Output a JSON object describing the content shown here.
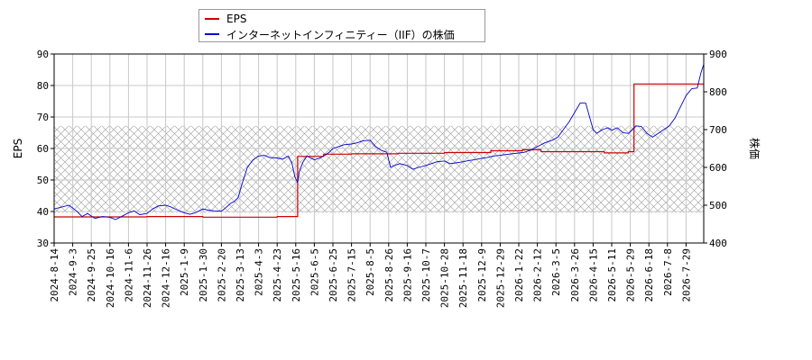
{
  "chart_data": {
    "type": "line",
    "title": "",
    "legend": {
      "placement": "top-left",
      "entries": [
        {
          "name": "EPS",
          "color": "#cc0000"
        },
        {
          "name": "インターネットインフィニティー（IIF）の株価",
          "color": "#0000cc"
        }
      ]
    },
    "x_axis": {
      "tick_labels": [
        "2024-8-14",
        "2024-9-3",
        "2024-9-25",
        "2024-10-16",
        "2024-11-6",
        "2024-11-26",
        "2024-12-16",
        "2025-1-9",
        "2025-1-30",
        "2025-2-20",
        "2025-3-13",
        "2025-4-3",
        "2025-4-23",
        "2025-5-16",
        "2025-6-5",
        "2025-6-25",
        "2025-7-15",
        "2025-8-5",
        "2025-8-26",
        "2025-9-16",
        "2025-10-7",
        "2025-10-28",
        "2025-11-18",
        "2025-12-9",
        "2025-12-29",
        "2026-1-22",
        "2026-2-12",
        "2026-3-5",
        "2026-3-26",
        "2026-4-15",
        "2026-5-11",
        "2026-5-29",
        "2026-6-18",
        "2026-7-8",
        "2026-7-29"
      ]
    },
    "y_left": {
      "label": "EPS",
      "range": [
        30,
        90
      ],
      "ticks": [
        30,
        40,
        50,
        60,
        70,
        80,
        90
      ]
    },
    "y_right": {
      "label": "株価",
      "range": [
        400,
        900
      ],
      "ticks": [
        400,
        500,
        600,
        700,
        800,
        900
      ]
    },
    "grid": true,
    "hatched_band": {
      "axis": "right",
      "from": 480,
      "to": 710
    },
    "series": [
      {
        "name": "EPS",
        "axis": "left",
        "color": "#cc0000",
        "step": true,
        "points": [
          [
            0,
            38.3
          ],
          [
            5,
            38.3
          ],
          [
            5,
            38.4
          ],
          [
            8,
            38.4
          ],
          [
            8,
            38.2
          ],
          [
            12,
            38.2
          ],
          [
            12,
            38.4
          ],
          [
            12.9,
            38.4
          ],
          [
            13.1,
            38.4
          ],
          [
            13.1,
            57.5
          ],
          [
            14.5,
            57.5
          ],
          [
            14.5,
            58.2
          ],
          [
            16,
            58.2
          ],
          [
            16,
            58.3
          ],
          [
            18.5,
            58.3
          ],
          [
            18.5,
            58.5
          ],
          [
            21,
            58.5
          ],
          [
            21,
            58.7
          ],
          [
            23.5,
            58.7
          ],
          [
            23.5,
            59.3
          ],
          [
            25.2,
            59.3
          ],
          [
            25.2,
            59.6
          ],
          [
            26.2,
            59.6
          ],
          [
            26.2,
            59.0
          ],
          [
            29.6,
            59.0
          ],
          [
            29.6,
            58.6
          ],
          [
            30.9,
            58.6
          ],
          [
            30.9,
            59.0
          ],
          [
            31.2,
            59.0
          ],
          [
            31.2,
            80.5
          ],
          [
            35,
            80.5
          ]
        ]
      },
      {
        "name": "インターネットインフィニティー（IIF）の株価",
        "axis": "right",
        "color": "#0000cc",
        "step": false,
        "points": [
          [
            0,
            490
          ],
          [
            0.4,
            495
          ],
          [
            0.8,
            500
          ],
          [
            1.2,
            485
          ],
          [
            1.5,
            470
          ],
          [
            1.8,
            478
          ],
          [
            2.2,
            465
          ],
          [
            2.6,
            470
          ],
          [
            3,
            468
          ],
          [
            3.3,
            462
          ],
          [
            3.7,
            472
          ],
          [
            4,
            480
          ],
          [
            4.3,
            485
          ],
          [
            4.6,
            475
          ],
          [
            5,
            478
          ],
          [
            5.3,
            490
          ],
          [
            5.6,
            498
          ],
          [
            6,
            500
          ],
          [
            6.3,
            495
          ],
          [
            6.6,
            488
          ],
          [
            7,
            480
          ],
          [
            7.3,
            476
          ],
          [
            7.6,
            480
          ],
          [
            8,
            490
          ],
          [
            8.3,
            487
          ],
          [
            8.6,
            485
          ],
          [
            9,
            484
          ],
          [
            9.2,
            492
          ],
          [
            9.5,
            505
          ],
          [
            9.7,
            510
          ],
          [
            9.9,
            520
          ],
          [
            10.1,
            555
          ],
          [
            10.4,
            600
          ],
          [
            10.7,
            620
          ],
          [
            11,
            630
          ],
          [
            11.3,
            632
          ],
          [
            11.6,
            626
          ],
          [
            12,
            625
          ],
          [
            12.3,
            622
          ],
          [
            12.6,
            630
          ],
          [
            12.8,
            610
          ],
          [
            12.95,
            575
          ],
          [
            13.1,
            560
          ],
          [
            13.2,
            590
          ],
          [
            13.4,
            615
          ],
          [
            13.6,
            630
          ],
          [
            13.8,
            625
          ],
          [
            14,
            620
          ],
          [
            14.3,
            625
          ],
          [
            14.5,
            630
          ],
          [
            14.8,
            640
          ],
          [
            15,
            650
          ],
          [
            15.3,
            655
          ],
          [
            15.6,
            660
          ],
          [
            16,
            662
          ],
          [
            16.3,
            665
          ],
          [
            16.6,
            670
          ],
          [
            17,
            672
          ],
          [
            17.3,
            655
          ],
          [
            17.6,
            645
          ],
          [
            17.9,
            640
          ],
          [
            18.1,
            600
          ],
          [
            18.3,
            605
          ],
          [
            18.6,
            610
          ],
          [
            19,
            605
          ],
          [
            19.3,
            595
          ],
          [
            19.6,
            600
          ],
          [
            20,
            605
          ],
          [
            20.3,
            610
          ],
          [
            20.6,
            615
          ],
          [
            21,
            617
          ],
          [
            21.3,
            610
          ],
          [
            21.6,
            612
          ],
          [
            22,
            615
          ],
          [
            22.3,
            618
          ],
          [
            22.6,
            620
          ],
          [
            23,
            624
          ],
          [
            23.3,
            626
          ],
          [
            23.6,
            630
          ],
          [
            24,
            632
          ],
          [
            24.3,
            634
          ],
          [
            24.6,
            636
          ],
          [
            25,
            638
          ],
          [
            25.3,
            640
          ],
          [
            25.6,
            645
          ],
          [
            26,
            655
          ],
          [
            26.4,
            665
          ],
          [
            26.8,
            672
          ],
          [
            27.1,
            680
          ],
          [
            27.4,
            700
          ],
          [
            27.7,
            720
          ],
          [
            28,
            745
          ],
          [
            28.3,
            770
          ],
          [
            28.6,
            770
          ],
          [
            29,
            700
          ],
          [
            29.2,
            690
          ],
          [
            29.5,
            700
          ],
          [
            29.8,
            705
          ],
          [
            30,
            698
          ],
          [
            30.3,
            705
          ],
          [
            30.6,
            692
          ],
          [
            30.9,
            690
          ],
          [
            31.1,
            700
          ],
          [
            31.3,
            710
          ],
          [
            31.6,
            708
          ],
          [
            31.9,
            690
          ],
          [
            32.2,
            680
          ],
          [
            32.5,
            690
          ],
          [
            32.8,
            700
          ],
          [
            33.1,
            710
          ],
          [
            33.4,
            730
          ],
          [
            33.7,
            760
          ],
          [
            34,
            790
          ],
          [
            34.3,
            808
          ],
          [
            34.6,
            810
          ],
          [
            34.8,
            850
          ],
          [
            35,
            880
          ],
          [
            35,
            900
          ]
        ]
      }
    ]
  }
}
